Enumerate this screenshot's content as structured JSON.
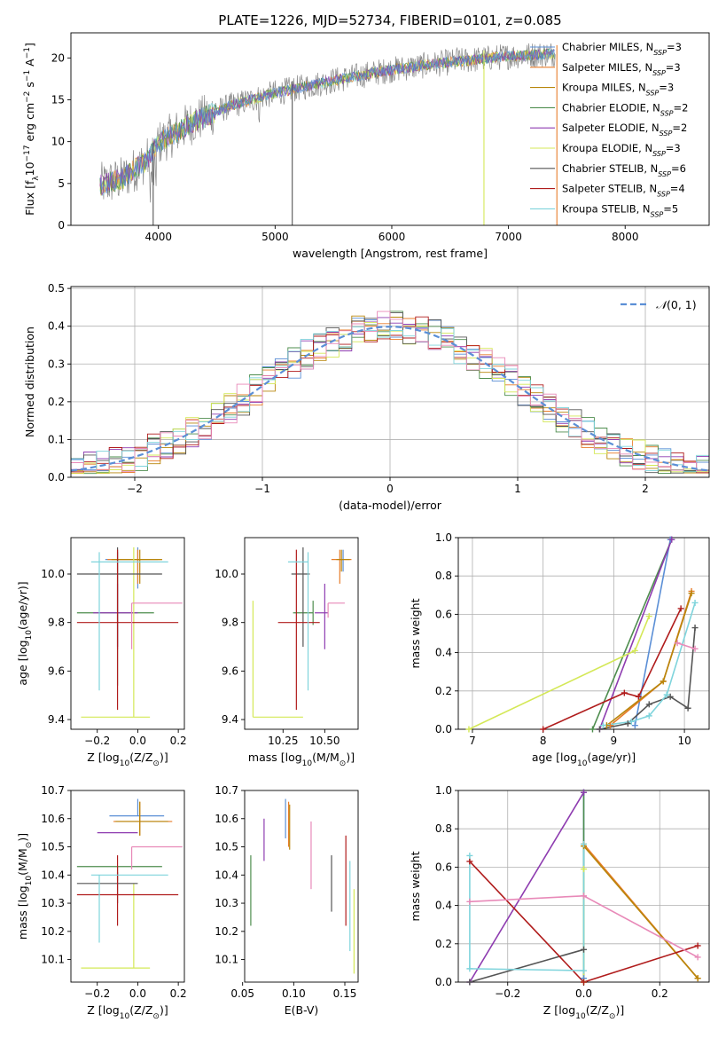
{
  "colors": {
    "Chabrier MILES": "#5b8fd6",
    "Salpeter MILES": "#e87c2a",
    "Kroupa MILES": "#b8860b",
    "Chabrier ELODIE": "#4e8d4e",
    "Salpeter ELODIE": "#8e3cb0",
    "Kroupa ELODIE": "#d4e857",
    "Chabrier STELIB": "#555555",
    "Salpeter STELIB": "#b01c1c",
    "Kroupa STELIB": "#7fd4dc",
    "grid": "#b0b0b0",
    "normal": "#5b8fd6",
    "pink": "#e889b8"
  },
  "chart_data": [
    {
      "id": "spectrum",
      "type": "line",
      "title": "PLATE=1226, MJD=52734, FIBERID=0101, z=0.085",
      "xlabel": "wavelength [Angstrom, rest frame]",
      "ylabel": "Flux [fλ10⁻¹⁷ erg cm⁻² s⁻¹ A⁻¹]",
      "xlim": [
        3250,
        8720
      ],
      "ylim": [
        0,
        23
      ],
      "xticks": [
        4000,
        5000,
        6000,
        7000,
        8000
      ],
      "yticks": [
        0,
        5,
        10,
        15,
        20
      ],
      "grid": false,
      "legend_position": "right",
      "continuum": {
        "x": [
          3500,
          3700,
          3900,
          4000,
          4300,
          4600,
          5000,
          5500,
          6000,
          6500,
          7000,
          7500,
          8000,
          8400
        ],
        "y": [
          4.8,
          5.6,
          7.8,
          9.8,
          12.4,
          14.2,
          15.8,
          17.3,
          18.6,
          19.5,
          20.2,
          20.6,
          20.9,
          21.1
        ]
      },
      "legend": [
        "Chabrier MILES, N_SSP=3",
        "Salpeter MILES, N_SSP=3",
        "Kroupa MILES, N_SSP=3",
        "Chabrier ELODIE, N_SSP=2",
        "Salpeter ELODIE, N_SSP=2",
        "Kroupa ELODIE, N_SSP=3",
        "Chabrier STELIB, N_SSP=6",
        "Salpeter STELIB, N_SSP=4",
        "Kroupa STELIB, N_SSP=5"
      ],
      "legend_display": [
        {
          "name": "Chabrier MILES, N",
          "sub": "SSP",
          "suffix": "=3"
        },
        {
          "name": "Salpeter MILES, N",
          "sub": "SSP",
          "suffix": "=3"
        },
        {
          "name": "Kroupa MILES, N",
          "sub": "SSP",
          "suffix": "=3"
        },
        {
          "name": "Chabrier ELODIE, N",
          "sub": "SSP",
          "suffix": "=2"
        },
        {
          "name": "Salpeter ELODIE, N",
          "sub": "SSP",
          "suffix": "=2"
        },
        {
          "name": "Kroupa ELODIE, N",
          "sub": "SSP",
          "suffix": "=3"
        },
        {
          "name": "Chabrier STELIB, N",
          "sub": "SSP",
          "suffix": "=6"
        },
        {
          "name": "Salpeter STELIB, N",
          "sub": "SSP",
          "suffix": "=4"
        },
        {
          "name": "Kroupa STELIB, N",
          "sub": "SSP",
          "suffix": "=5"
        }
      ]
    },
    {
      "id": "residuals",
      "type": "histogram",
      "xlabel": "(data-model)/error",
      "ylabel": "Normed distribution",
      "xlim": [
        -2.5,
        2.5
      ],
      "ylim": [
        0,
        0.505
      ],
      "xticks": [
        -2,
        -1,
        0,
        1,
        2
      ],
      "yticks": [
        0.0,
        0.1,
        0.2,
        0.3,
        0.4,
        0.5
      ],
      "grid": true,
      "legend_position": "top-right",
      "legend": [
        "𝒩(0, 1)"
      ],
      "bin_width": 0.1
    },
    {
      "id": "age_vs_Z",
      "type": "errorbar",
      "xlabel": "Z [log10(Z/Z⊙)]",
      "ylabel": "age  [log10(age/yr)]",
      "xlim": [
        -0.33,
        0.23
      ],
      "ylim": [
        9.36,
        10.15
      ],
      "xticks": [
        -0.2,
        0.0,
        0.2
      ],
      "yticks": [
        9.4,
        9.6,
        9.8,
        10.0
      ],
      "points": [
        {
          "series": "Chabrier MILES",
          "x": 0.0,
          "xerr": [
            0.16,
            0.1
          ],
          "y": 10.06,
          "yerr": [
            0.12,
            0.05
          ]
        },
        {
          "series": "Salpeter MILES",
          "x": 0.0,
          "xerr": [
            0.15,
            0.12
          ],
          "y": 10.06,
          "yerr": [
            0.1,
            0.04
          ]
        },
        {
          "series": "Kroupa MILES",
          "x": 0.01,
          "xerr": [
            0.14,
            0.11
          ],
          "y": 10.06,
          "yerr": [
            0.1,
            0.04
          ]
        },
        {
          "series": "Chabrier ELODIE",
          "x": -0.1,
          "xerr": [
            0.2,
            0.18
          ],
          "y": 9.84,
          "yerr": [
            0.3,
            0.25
          ]
        },
        {
          "series": "Salpeter ELODIE",
          "x": -0.1,
          "xerr": [
            0.12,
            0.1
          ],
          "y": 9.84,
          "yerr": [
            0.15,
            0.12
          ]
        },
        {
          "series": "Kroupa ELODIE",
          "x": -0.02,
          "xerr": [
            0.26,
            0.08
          ],
          "y": 9.41,
          "yerr": [
            0.0,
            0.7
          ]
        },
        {
          "series": "Chabrier STELIB",
          "x": -0.1,
          "xerr": [
            0.2,
            0.22
          ],
          "y": 10.0,
          "yerr": [
            0.3,
            0.11
          ]
        },
        {
          "series": "Salpeter STELIB",
          "x": -0.1,
          "xerr": [
            0.2,
            0.3
          ],
          "y": 9.8,
          "yerr": [
            0.36,
            0.3
          ]
        },
        {
          "series": "Kroupa STELIB",
          "x": -0.19,
          "xerr": [
            0.04,
            0.34
          ],
          "y": 10.05,
          "yerr": [
            0.53,
            0.04
          ]
        },
        {
          "series": "pink",
          "x": -0.03,
          "xerr": [
            0.0,
            0.25
          ],
          "y": 9.88,
          "yerr": [
            0.19,
            0.0
          ]
        }
      ]
    },
    {
      "id": "age_vs_mass",
      "type": "errorbar",
      "xlabel": "mass [log10(M/M⊙)]",
      "ylabel": "",
      "xlim": [
        10.02,
        10.7
      ],
      "ylim": [
        9.36,
        10.15
      ],
      "xticks": [
        10.25,
        10.5
      ],
      "yticks": [
        9.4,
        9.6,
        9.8,
        10.0
      ],
      "points": [
        {
          "series": "Chabrier MILES",
          "x": 10.61,
          "xerr": [
            0.0,
            0.0
          ],
          "y": 10.06,
          "yerr": [
            0.05,
            0.04
          ]
        },
        {
          "series": "Salpeter MILES",
          "x": 10.59,
          "xerr": [
            0.05,
            0.07
          ],
          "y": 10.06,
          "yerr": [
            0.1,
            0.04
          ]
        },
        {
          "series": "Kroupa MILES",
          "x": 10.6,
          "xerr": [
            0.03,
            0.05
          ],
          "y": 10.06,
          "yerr": [
            0.05,
            0.04
          ]
        },
        {
          "series": "Chabrier ELODIE",
          "x": 10.43,
          "xerr": [
            0.12,
            0.0
          ],
          "y": 9.84,
          "yerr": [
            0.05,
            0.05
          ]
        },
        {
          "series": "Salpeter ELODIE",
          "x": 10.5,
          "xerr": [
            0.06,
            0.02
          ],
          "y": 9.84,
          "yerr": [
            0.15,
            0.12
          ]
        },
        {
          "series": "Kroupa ELODIE",
          "x": 10.07,
          "xerr": [
            0.0,
            0.3
          ],
          "y": 9.41,
          "yerr": [
            0.0,
            0.48
          ]
        },
        {
          "series": "Chabrier STELIB",
          "x": 10.37,
          "xerr": [
            0.07,
            0.04
          ],
          "y": 10.0,
          "yerr": [
            0.3,
            0.11
          ]
        },
        {
          "series": "Salpeter STELIB",
          "x": 10.33,
          "xerr": [
            0.11,
            0.14
          ],
          "y": 9.8,
          "yerr": [
            0.36,
            0.3
          ]
        },
        {
          "series": "Kroupa STELIB",
          "x": 10.4,
          "xerr": [
            0.12,
            0.0
          ],
          "y": 10.05,
          "yerr": [
            0.53,
            0.04
          ]
        },
        {
          "series": "pink",
          "x": 10.52,
          "xerr": [
            0.0,
            0.1
          ],
          "y": 9.88,
          "yerr": [
            0.06,
            0.0
          ]
        }
      ]
    },
    {
      "id": "weight_vs_age",
      "type": "line",
      "xlabel": "age  [log10(age/yr)]",
      "ylabel": "mass weight",
      "xlim": [
        6.8,
        10.35
      ],
      "ylim": [
        0,
        1
      ],
      "xticks": [
        7,
        8,
        9,
        10
      ],
      "yticks": [
        0.0,
        0.2,
        0.4,
        0.6,
        0.8,
        1.0
      ],
      "grid": true,
      "series": [
        {
          "name": "Chabrier MILES",
          "x": [
            9.3,
            9.8
          ],
          "y": [
            0.02,
            0.99
          ]
        },
        {
          "name": "Salpeter MILES",
          "x": [
            8.95,
            9.7,
            10.1
          ],
          "y": [
            0.02,
            0.25,
            0.72
          ]
        },
        {
          "name": "Kroupa MILES",
          "x": [
            8.9,
            9.7,
            10.1
          ],
          "y": [
            0.02,
            0.25,
            0.71
          ]
        },
        {
          "name": "Chabrier ELODIE",
          "x": [
            8.7,
            9.82
          ],
          "y": [
            0.0,
            0.99
          ]
        },
        {
          "name": "Salpeter ELODIE",
          "x": [
            8.8,
            9.82
          ],
          "y": [
            0.0,
            0.99
          ]
        },
        {
          "name": "Kroupa ELODIE",
          "x": [
            6.95,
            9.3,
            9.5
          ],
          "y": [
            0.0,
            0.41,
            0.59
          ]
        },
        {
          "name": "Chabrier STELIB",
          "x": [
            8.8,
            9.2,
            9.5,
            9.8,
            10.05,
            10.15
          ],
          "y": [
            0.0,
            0.03,
            0.13,
            0.17,
            0.11,
            0.53
          ]
        },
        {
          "name": "Salpeter STELIB",
          "x": [
            8.0,
            9.15,
            9.35,
            9.95
          ],
          "y": [
            0.0,
            0.19,
            0.17,
            0.63
          ]
        },
        {
          "name": "Kroupa STELIB",
          "x": [
            8.85,
            9.25,
            9.5,
            9.75,
            10.15
          ],
          "y": [
            0.02,
            0.04,
            0.07,
            0.18,
            0.66
          ]
        },
        {
          "name": "pink",
          "x": [
            9.9,
            10.15
          ],
          "y": [
            0.45,
            0.42
          ]
        }
      ]
    },
    {
      "id": "mass_vs_Z",
      "type": "errorbar",
      "xlabel": "Z [log10(Z/Z⊙)]",
      "ylabel": "mass [log10(M/M⊙)]",
      "xlim": [
        -0.33,
        0.23
      ],
      "ylim": [
        10.02,
        10.7
      ],
      "xticks": [
        -0.2,
        0.0,
        0.2
      ],
      "yticks": [
        10.1,
        10.2,
        10.3,
        10.4,
        10.5,
        10.6,
        10.7
      ],
      "points": [
        {
          "series": "Chabrier MILES",
          "x": 0.0,
          "xerr": [
            0.14,
            0.13
          ],
          "y": 10.61,
          "yerr": [
            0.0,
            0.06
          ]
        },
        {
          "series": "Salpeter MILES",
          "x": 0.01,
          "xerr": [
            0.13,
            0.16
          ],
          "y": 10.59,
          "yerr": [
            0.05,
            0.07
          ]
        },
        {
          "series": "Kroupa MILES",
          "x": 0.01,
          "xerr": [
            0.12,
            0.14
          ],
          "y": 10.59,
          "yerr": [
            0.05,
            0.07
          ]
        },
        {
          "series": "Chabrier ELODIE",
          "x": -0.1,
          "xerr": [
            0.2,
            0.22
          ],
          "y": 10.43,
          "yerr": [
            0.05,
            0.0
          ]
        },
        {
          "series": "Salpeter ELODIE",
          "x": -0.05,
          "xerr": [
            0.15,
            0.05
          ],
          "y": 10.55,
          "yerr": [
            0.0,
            0.0
          ]
        },
        {
          "series": "Kroupa ELODIE",
          "x": -0.02,
          "xerr": [
            0.26,
            0.08
          ],
          "y": 10.07,
          "yerr": [
            0.0,
            0.3
          ]
        },
        {
          "series": "Chabrier STELIB",
          "x": -0.1,
          "xerr": [
            0.2,
            0.1
          ],
          "y": 10.37,
          "yerr": [
            0.07,
            0.04
          ]
        },
        {
          "series": "Salpeter STELIB",
          "x": -0.1,
          "xerr": [
            0.2,
            0.3
          ],
          "y": 10.33,
          "yerr": [
            0.11,
            0.14
          ]
        },
        {
          "series": "Kroupa STELIB",
          "x": -0.19,
          "xerr": [
            0.04,
            0.34
          ],
          "y": 10.4,
          "yerr": [
            0.24,
            0.0
          ]
        },
        {
          "series": "pink",
          "x": -0.03,
          "xerr": [
            0.0,
            0.25
          ],
          "y": 10.5,
          "yerr": [
            0.08,
            0.0
          ]
        }
      ]
    },
    {
      "id": "mass_vs_ebv",
      "type": "errorbar",
      "xlabel": "E(B-V)",
      "ylabel": "",
      "xlim": [
        0.052,
        0.163
      ],
      "ylim": [
        10.02,
        10.7
      ],
      "xticks": [
        0.05,
        0.1,
        0.15
      ],
      "yticks": [
        10.1,
        10.2,
        10.3,
        10.4,
        10.5,
        10.6,
        10.7
      ],
      "points": [
        {
          "series": "Chabrier MILES",
          "x": 0.092,
          "xerr": [
            0,
            0
          ],
          "y": 10.61,
          "yerr": [
            0.08,
            0.06
          ]
        },
        {
          "series": "Salpeter MILES",
          "x": 0.095,
          "xerr": [
            0,
            0
          ],
          "y": 10.6,
          "yerr": [
            0.1,
            0.06
          ]
        },
        {
          "series": "Kroupa MILES",
          "x": 0.096,
          "xerr": [
            0,
            0
          ],
          "y": 10.59,
          "yerr": [
            0.1,
            0.06
          ]
        },
        {
          "series": "Chabrier ELODIE",
          "x": 0.058,
          "xerr": [
            0,
            0
          ],
          "y": 10.35,
          "yerr": [
            0.13,
            0.12
          ]
        },
        {
          "series": "Salpeter ELODIE",
          "x": 0.071,
          "xerr": [
            0,
            0
          ],
          "y": 10.55,
          "yerr": [
            0.1,
            0.05
          ]
        },
        {
          "series": "Kroupa ELODIE",
          "x": 0.159,
          "xerr": [
            0,
            0
          ],
          "y": 10.2,
          "yerr": [
            0.15,
            0.15
          ]
        },
        {
          "series": "Chabrier STELIB",
          "x": 0.137,
          "xerr": [
            0,
            0
          ],
          "y": 10.37,
          "yerr": [
            0.1,
            0.1
          ]
        },
        {
          "series": "Salpeter STELIB",
          "x": 0.151,
          "xerr": [
            0,
            0
          ],
          "y": 10.38,
          "yerr": [
            0.16,
            0.16
          ]
        },
        {
          "series": "Kroupa STELIB",
          "x": 0.155,
          "xerr": [
            0,
            0
          ],
          "y": 10.3,
          "yerr": [
            0.17,
            0.15
          ]
        },
        {
          "series": "pink",
          "x": 0.117,
          "xerr": [
            0,
            0
          ],
          "y": 10.47,
          "yerr": [
            0.12,
            0.12
          ]
        }
      ]
    },
    {
      "id": "weight_vs_Z",
      "type": "line",
      "xlabel": "Z [log10(Z/Z⊙)]",
      "ylabel": "mass weight",
      "xlim": [
        -0.33,
        0.33
      ],
      "ylim": [
        0,
        1
      ],
      "xticks": [
        -0.2,
        0.0,
        0.2
      ],
      "yticks": [
        0.0,
        0.2,
        0.4,
        0.6,
        0.8,
        1.0
      ],
      "grid": true,
      "series": [
        {
          "name": "Chabrier MILES",
          "x": [
            0.0,
            0.0
          ],
          "y": [
            0.02,
            0.99
          ]
        },
        {
          "name": "Salpeter MILES",
          "x": [
            0.0,
            0.3
          ],
          "y": [
            0.72,
            0.02
          ]
        },
        {
          "name": "Kroupa MILES",
          "x": [
            0.0,
            0.3
          ],
          "y": [
            0.71,
            0.02
          ]
        },
        {
          "name": "Chabrier ELODIE",
          "x": [
            0.0,
            0.0
          ],
          "y": [
            0.0,
            0.99
          ]
        },
        {
          "name": "Salpeter ELODIE",
          "x": [
            -0.3,
            0.0
          ],
          "y": [
            0.0,
            0.99
          ]
        },
        {
          "name": "Kroupa ELODIE",
          "x": [
            0.0,
            0.0
          ],
          "y": [
            0.0,
            0.59
          ]
        },
        {
          "name": "Chabrier STELIB",
          "x": [
            -0.3,
            0.0
          ],
          "y": [
            0.0,
            0.17
          ]
        },
        {
          "name": "Salpeter STELIB",
          "x": [
            -0.3,
            0.0,
            0.3
          ],
          "y": [
            0.63,
            0.0,
            0.19
          ]
        },
        {
          "name": "Kroupa STELIB",
          "x": [
            -0.3,
            -0.3,
            0.0,
            0.0
          ],
          "y": [
            0.66,
            0.07,
            0.06,
            0.72
          ]
        },
        {
          "name": "pink",
          "x": [
            -0.3,
            0.0,
            0.3
          ],
          "y": [
            0.42,
            0.45,
            0.13
          ]
        }
      ]
    }
  ]
}
